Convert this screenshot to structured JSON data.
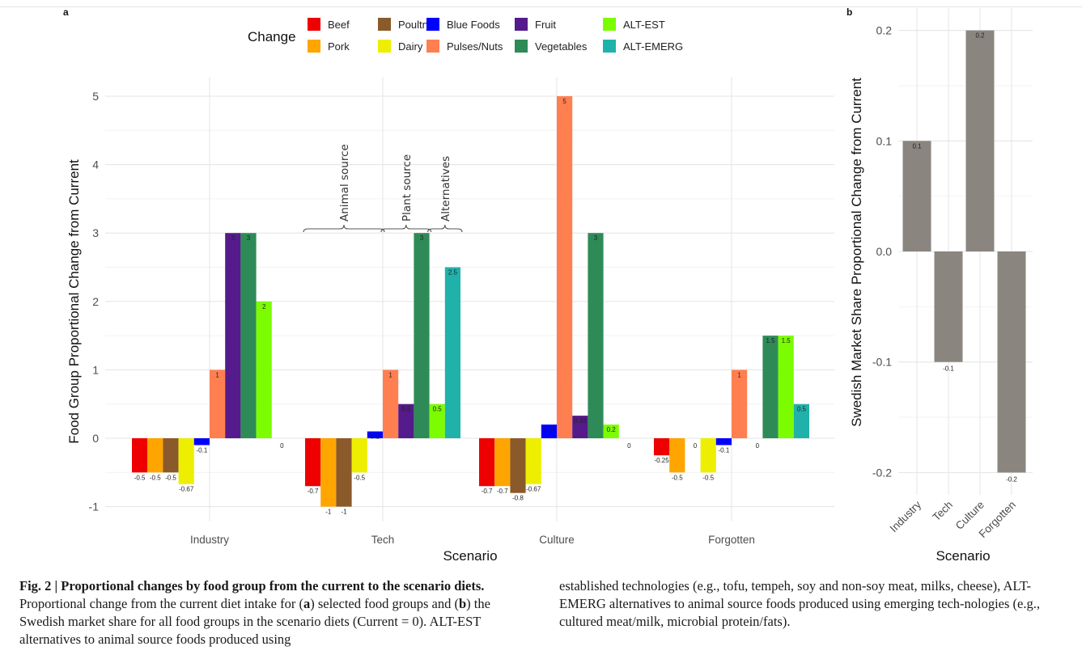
{
  "figure": {
    "panel_a_label": "a",
    "panel_b_label": "b",
    "caption": {
      "fig_label": "Fig. 2 | Proportional changes by food group from the current to the scenario diets.",
      "text_1": " Proportional change from the current diet intake for (",
      "a_ref": "a",
      "text_2": ") selected food groups and (",
      "b_ref": "b",
      "text_3": ") the Swedish market share for all food groups in the scenario diets (Current = 0). ALT-EST alternatives to animal source foods produced using",
      "right_column": "established technologies (e.g., tofu, tempeh, soy and non-soy meat, milks, cheese), ALT-EMERG alternatives to animal source foods produced using emerging tech-nologies (e.g., cultured meat/milk, microbial protein/fats)."
    }
  },
  "chart_data": [
    {
      "type": "bar",
      "panel": "a",
      "title": "",
      "xlabel": "Scenario",
      "ylabel": "Food Group Proportional Change from Current",
      "ylim": [
        -1,
        5
      ],
      "yticks": [
        "5",
        "4",
        "3",
        "2",
        "1",
        "0",
        "-1"
      ],
      "grid": true,
      "legend": {
        "title": "Change",
        "placement": "top",
        "entries": [
          "Beef",
          "Pork",
          "Poultry",
          "Dairy",
          "Blue Foods",
          "Pulses/Nuts",
          "Fruit",
          "Vegetables",
          "ALT-EST",
          "ALT-EMERG"
        ]
      },
      "categories": [
        "Industry",
        "Tech",
        "Culture",
        "Forgotten"
      ],
      "series": [
        {
          "name": "Beef",
          "color": "#ee0000",
          "values": [
            -0.5,
            -0.7,
            -0.7,
            -0.25
          ],
          "labels": [
            "-0.5",
            "-0.7",
            "-0.7",
            "-0.25"
          ]
        },
        {
          "name": "Pork",
          "color": "#ffa500",
          "values": [
            -0.5,
            -1,
            -0.7,
            -0.5
          ],
          "labels": [
            "-0.5",
            "-1",
            "-0.7",
            "-0.5"
          ]
        },
        {
          "name": "Poultry",
          "color": "#8b5a2b",
          "values": [
            -0.5,
            -1,
            -0.8,
            0
          ],
          "labels": [
            "-0.5",
            "-1",
            "-0.8",
            "0"
          ]
        },
        {
          "name": "Dairy",
          "color": "#eeee00",
          "values": [
            -0.67,
            -0.5,
            -0.67,
            -0.5
          ],
          "labels": [
            "-0.67",
            "-0.5",
            "-0.67",
            "-0.5"
          ]
        },
        {
          "name": "Blue Foods",
          "color": "#0000ff",
          "values": [
            -0.1,
            0.1,
            0.2,
            -0.1
          ],
          "labels": [
            "-0.1",
            "0.1",
            "0.2",
            "-0.1"
          ]
        },
        {
          "name": "Pulses/Nuts",
          "color": "#ff7f50",
          "values": [
            1,
            1,
            5,
            1
          ],
          "labels": [
            "1",
            "1",
            "5",
            "1"
          ]
        },
        {
          "name": "Fruit",
          "color": "#551a8b",
          "values": [
            3,
            0.5,
            0.33,
            0
          ],
          "labels": [
            "3",
            "0.5",
            "0.33",
            "0"
          ]
        },
        {
          "name": "Vegetables",
          "color": "#2e8b57",
          "values": [
            3,
            3,
            3,
            1.5
          ],
          "labels": [
            "3",
            "3",
            "3",
            "1.5"
          ]
        },
        {
          "name": "ALT-EST",
          "color": "#7cfc00",
          "values": [
            2,
            0.5,
            0.2,
            1.5
          ],
          "labels": [
            "2",
            "0.5",
            "0.2",
            "1.5"
          ]
        },
        {
          "name": "ALT-EMERG",
          "color": "#20b2aa",
          "values": [
            0,
            2.5,
            0,
            0.5
          ],
          "labels": [
            "0",
            "2.5",
            "0",
            "0.5"
          ]
        }
      ],
      "annotations": {
        "category": "Tech",
        "brackets": [
          {
            "label": "Animal source",
            "from_series": "Beef",
            "to_series": "Blue Foods"
          },
          {
            "label": "Plant source",
            "from_series": "Pulses/Nuts",
            "to_series": "Vegetables"
          },
          {
            "label": "Alternatives",
            "from_series": "ALT-EST",
            "to_series": "ALT-EMERG"
          }
        ]
      }
    },
    {
      "type": "bar",
      "panel": "b",
      "title": "",
      "xlabel": "Scenario",
      "ylabel": "Swedish Market Share Proportional Change from Current",
      "ylim": [
        -0.2,
        0.2
      ],
      "yticks": [
        "0.2",
        "0.1",
        "0.0",
        "-0.1",
        "-0.2"
      ],
      "grid": true,
      "color": "#8b8580",
      "categories": [
        "Industry",
        "Tech",
        "Culture",
        "Forgotten"
      ],
      "values": [
        0.1,
        -0.1,
        0.2,
        -0.2
      ],
      "labels": [
        "0.1",
        "-0.1",
        "0.2",
        "-0.2"
      ]
    }
  ]
}
